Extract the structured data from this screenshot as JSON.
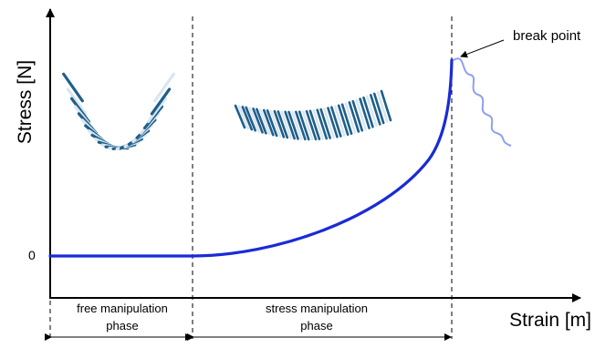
{
  "axes": {
    "x_label": "Strain [m]",
    "y_label": "Stress [N]",
    "zero_tick": "0"
  },
  "phases": [
    {
      "label_line1": "free manipulation",
      "label_line2": "phase"
    },
    {
      "label_line1": "stress manipulation",
      "label_line2": "phase"
    }
  ],
  "annotation": {
    "break_point": "break point"
  },
  "colors": {
    "curve": "#1a2bd6",
    "break_wave": "#8f9ff2",
    "fabric_dark": "#1f5f8a",
    "fabric_light": "#d9e6f0"
  },
  "illustrations": [
    {
      "name": "draped-fabric",
      "phase": "free manipulation"
    },
    {
      "name": "stretched-fabric",
      "phase": "stress manipulation"
    }
  ]
}
